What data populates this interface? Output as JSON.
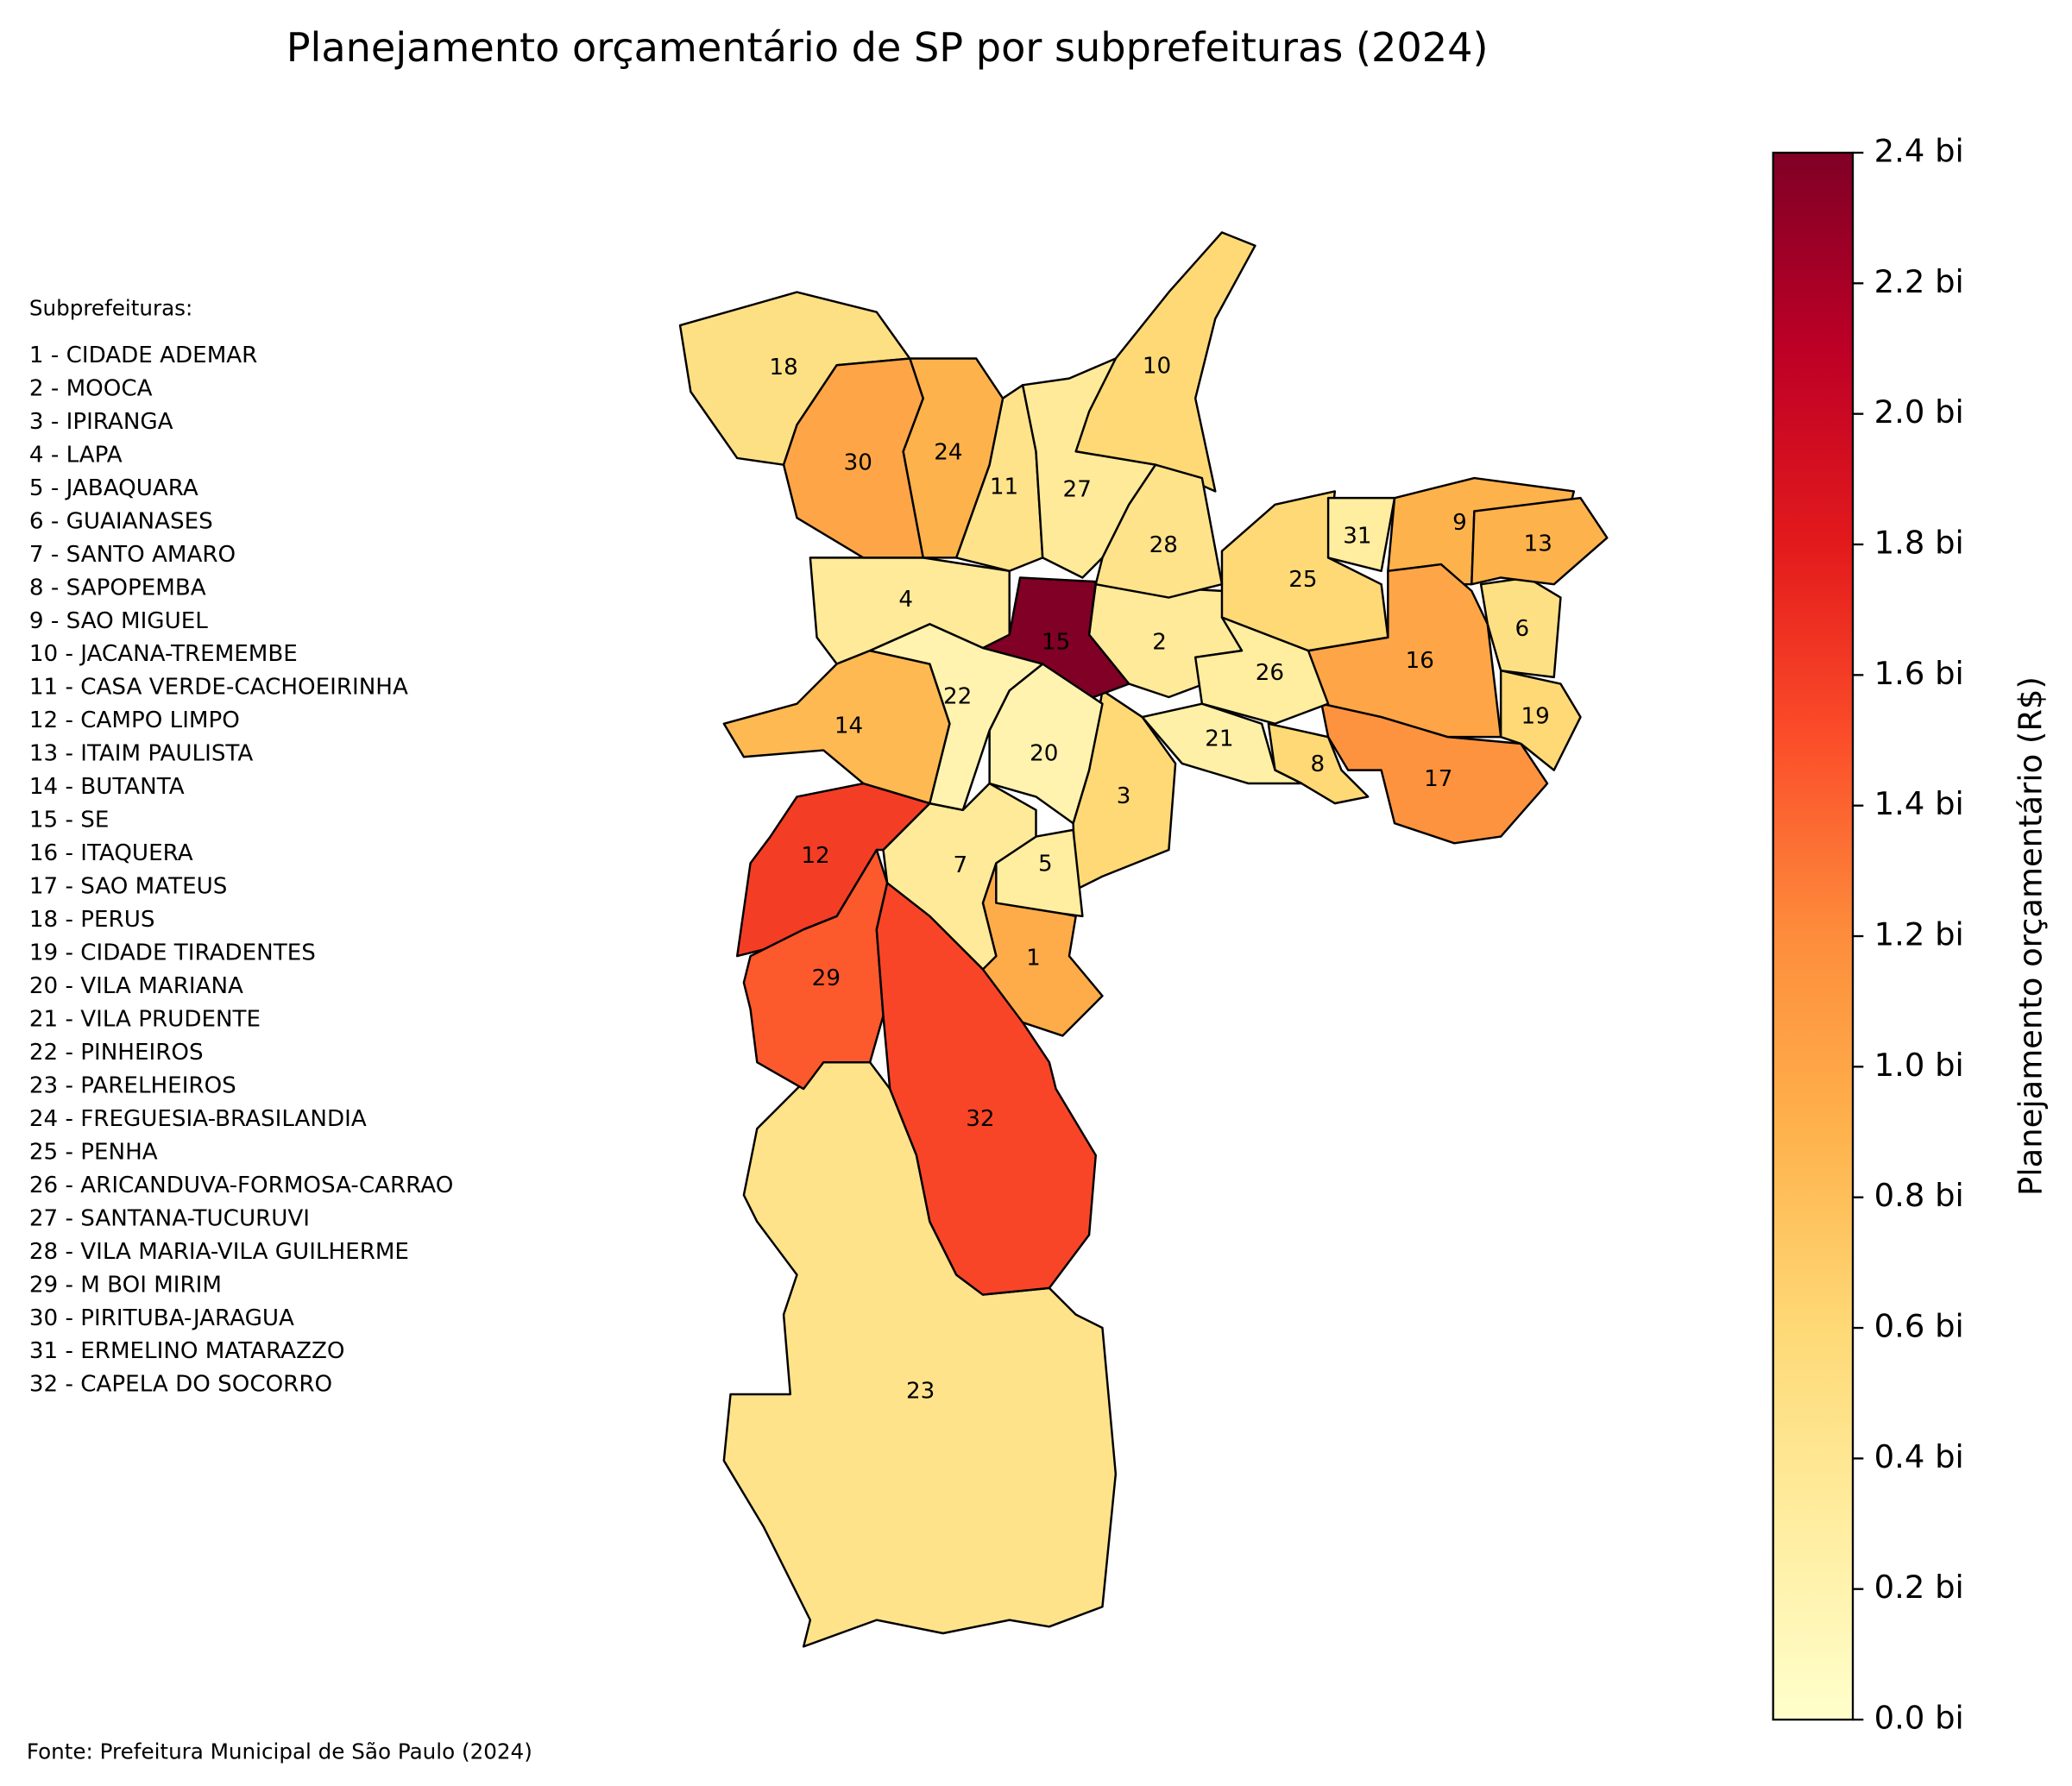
{
  "chart_data": {
    "type": "choropleth",
    "title": "Planejamento orçamentário de SP por subprefeituras (2024)",
    "legend_title": "Subprefeituras:",
    "colorbar_label": "Planejamento orçamentário (R$)",
    "colormap": "YlOrRd",
    "clim": [
      0,
      2.4
    ],
    "cticks": [
      {
        "value": 0,
        "label": "0.0 bi"
      },
      {
        "value": 0.2,
        "label": "0.2 bi"
      },
      {
        "value": 0.4,
        "label": "0.4 bi"
      },
      {
        "value": 0.6,
        "label": "0.6 bi"
      },
      {
        "value": 0.8,
        "label": "0.8 bi"
      },
      {
        "value": 1,
        "label": "1.0 bi"
      },
      {
        "value": 1.2,
        "label": "1.2 bi"
      },
      {
        "value": 1.4,
        "label": "1.4 bi"
      },
      {
        "value": 1.6,
        "label": "1.6 bi"
      },
      {
        "value": 1.8,
        "label": "1.8 bi"
      },
      {
        "value": 2,
        "label": "2.0 bi"
      },
      {
        "value": 2.2,
        "label": "2.2 bi"
      },
      {
        "value": 2.4,
        "label": "2.4 bi"
      }
    ],
    "regions": [
      {
        "number": 1,
        "name": "1 - CIDADE ADEMAR",
        "value": 0.95
      },
      {
        "number": 2,
        "name": "2 - MOOCA",
        "value": 0.35
      },
      {
        "number": 3,
        "name": "3 - IPIRANGA",
        "value": 0.6
      },
      {
        "number": 4,
        "name": "4 - LAPA",
        "value": 0.35
      },
      {
        "number": 5,
        "name": "5 - JABAQUARA",
        "value": 0.3
      },
      {
        "number": 6,
        "name": "6 - GUAIANASES",
        "value": 0.5
      },
      {
        "number": 7,
        "name": "7 - SANTO AMARO",
        "value": 0.35
      },
      {
        "number": 8,
        "name": "8 - SAPOPEMBA",
        "value": 0.6
      },
      {
        "number": 9,
        "name": "9 - SAO MIGUEL",
        "value": 0.9
      },
      {
        "number": 10,
        "name": "10 - JACANA-TREMEMBE",
        "value": 0.6
      },
      {
        "number": 11,
        "name": "11 - CASA VERDE-CACHOEIRINHA",
        "value": 0.45
      },
      {
        "number": 12,
        "name": "12 - CAMPO LIMPO",
        "value": 1.6
      },
      {
        "number": 13,
        "name": "13 - ITAIM PAULISTA",
        "value": 0.9
      },
      {
        "number": 14,
        "name": "14 - BUTANTA",
        "value": 0.85
      },
      {
        "number": 15,
        "name": "15 - SE",
        "value": 2.4
      },
      {
        "number": 16,
        "name": "16 - ITAQUERA",
        "value": 1.0
      },
      {
        "number": 17,
        "name": "17 - SAO MATEUS",
        "value": 1.15
      },
      {
        "number": 18,
        "name": "18 - PERUS",
        "value": 0.5
      },
      {
        "number": 19,
        "name": "19 - CIDADE TIRADENTES",
        "value": 0.6
      },
      {
        "number": 20,
        "name": "20 - VILA MARIANA",
        "value": 0.2
      },
      {
        "number": 21,
        "name": "21 - VILA PRUDENTE",
        "value": 0.25
      },
      {
        "number": 22,
        "name": "22 - PINHEIROS",
        "value": 0.2
      },
      {
        "number": 23,
        "name": "23 - PARELHEIROS",
        "value": 0.45
      },
      {
        "number": 24,
        "name": "24 - FREGUESIA-BRASILANDIA",
        "value": 0.9
      },
      {
        "number": 25,
        "name": "25 - PENHA",
        "value": 0.6
      },
      {
        "number": 26,
        "name": "26 - ARICANDUVA-FORMOSA-CARRAO",
        "value": 0.3
      },
      {
        "number": 27,
        "name": "27 - SANTANA-TUCURUVI",
        "value": 0.35
      },
      {
        "number": 28,
        "name": "28 - VILA MARIA-VILA GUILHERME",
        "value": 0.45
      },
      {
        "number": 29,
        "name": "29 - M BOI MIRIM",
        "value": 1.45
      },
      {
        "number": 30,
        "name": "30 - PIRITUBA-JARAGUA",
        "value": 1.0
      },
      {
        "number": 31,
        "name": "31 - ERMELINO MATARAZZO",
        "value": 0.3
      },
      {
        "number": 32,
        "name": "32 - CAPELA DO SOCORRO",
        "value": 1.55
      }
    ]
  },
  "source": "Fonte: Prefeitura Municipal de São Paulo (2024)"
}
